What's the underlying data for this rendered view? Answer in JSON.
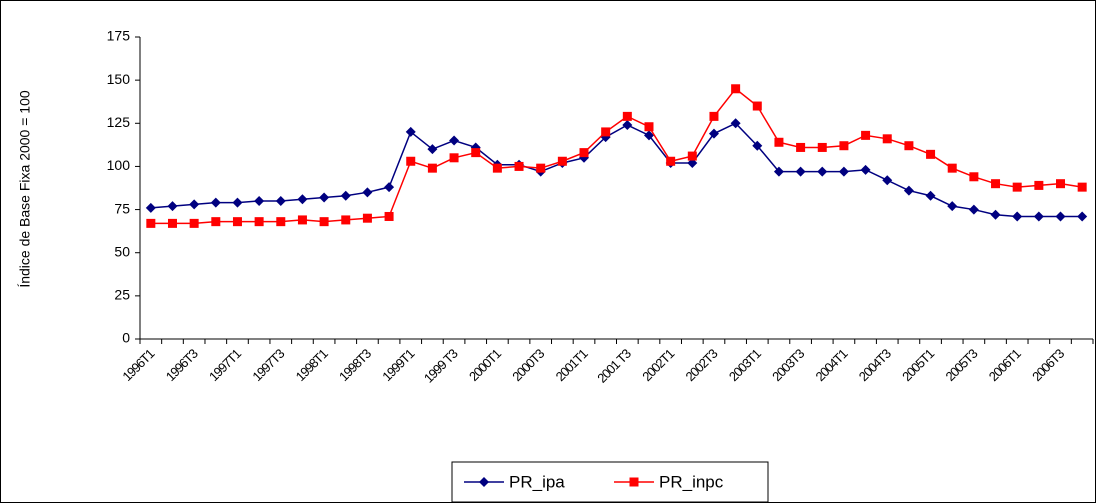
{
  "chart_data": {
    "type": "line",
    "y_label": "Índice de Base Fixa 2000 = 100",
    "categories": [
      "1996T1",
      null,
      "1996T3",
      null,
      "1997T1",
      null,
      "1997T3",
      null,
      "1998T1",
      null,
      "1998T3",
      null,
      "1999T1",
      null,
      "1999 T3",
      null,
      "2000T1",
      null,
      "2000T3",
      null,
      "2001T1",
      null,
      "2001 T3",
      null,
      "2002T1",
      null,
      "2002T3",
      null,
      "2003T1",
      null,
      "2003T3",
      null,
      "2004T1",
      null,
      "2004T3",
      null,
      "2005T1",
      null,
      "2005T3",
      null,
      "2006T1",
      null,
      "2006T3",
      null
    ],
    "series": [
      {
        "name": "PR_ipa",
        "color": "#000080",
        "marker": "diamond",
        "values": [
          76,
          77,
          78,
          79,
          79,
          80,
          80,
          81,
          82,
          83,
          85,
          88,
          120,
          110,
          115,
          111,
          101,
          101,
          97,
          102,
          105,
          117,
          124,
          118,
          102,
          102,
          119,
          125,
          112,
          97,
          97,
          97,
          97,
          98,
          92,
          86,
          83,
          77,
          75,
          72,
          71,
          71,
          71,
          71
        ]
      },
      {
        "name": "PR_inpc",
        "color": "#ff0000",
        "marker": "square",
        "values": [
          67,
          67,
          67,
          68,
          68,
          68,
          68,
          69,
          68,
          69,
          70,
          71,
          103,
          99,
          105,
          108,
          99,
          100,
          99,
          103,
          108,
          120,
          129,
          123,
          103,
          106,
          129,
          145,
          135,
          114,
          111,
          111,
          112,
          118,
          116,
          112,
          107,
          99,
          94,
          90,
          88,
          89,
          90,
          88
        ]
      }
    ],
    "ylim": [
      0,
      175
    ],
    "yticks": [
      0,
      25,
      50,
      75,
      100,
      125,
      150,
      175
    ],
    "legend": "bottom"
  }
}
